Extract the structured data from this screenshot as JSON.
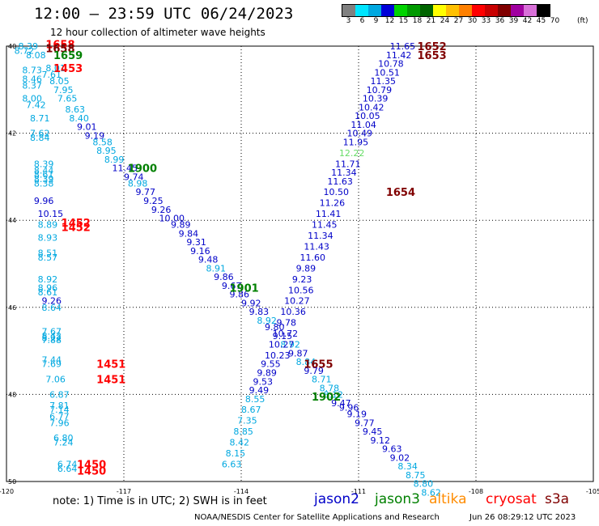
{
  "header": {
    "title": "12:00 – 23:59 UTC 06/24/2023",
    "subtitle": "12 hour collection of altimeter wave heights"
  },
  "legend": {
    "unit": "(ft)",
    "bins": [
      {
        "label": "3",
        "color": "#808080"
      },
      {
        "label": "6",
        "color": "#00e5ff"
      },
      {
        "label": "9",
        "color": "#00a8e0"
      },
      {
        "label": "12",
        "color": "#0000d8"
      },
      {
        "label": "15",
        "color": "#00d400"
      },
      {
        "label": "18",
        "color": "#009a00"
      },
      {
        "label": "21",
        "color": "#006400"
      },
      {
        "label": "24",
        "color": "#ffff00"
      },
      {
        "label": "27",
        "color": "#ffc000"
      },
      {
        "label": "30",
        "color": "#ff8000"
      },
      {
        "label": "33",
        "color": "#ff0000"
      },
      {
        "label": "36",
        "color": "#c80000"
      },
      {
        "label": "39",
        "color": "#800000"
      },
      {
        "label": "42",
        "color": "#a000a0"
      },
      {
        "label": "45",
        "color": "#d870d8"
      },
      {
        "label": "70",
        "color": "#000000"
      }
    ]
  },
  "map": {
    "lon_ticks": [
      "-120",
      "-117",
      "-114",
      "-111",
      "-108",
      "-105"
    ],
    "lat_ticks": [
      "40",
      "42",
      "44",
      "46",
      "48",
      "50"
    ],
    "lon_range": [
      -120,
      -105
    ],
    "lat_range": [
      40,
      50
    ],
    "lat_axis": "down",
    "grid": true
  },
  "colors": {
    "jason2": "#0000c8",
    "jason3": "#008000",
    "altika": "#ff8c00",
    "cryosat": "#ff0000",
    "s3a": "#800000",
    "cyan": "#00a8e0",
    "green": "#008000",
    "lightgreen": "#66dd66",
    "time": "#800000",
    "red": "#ff0000"
  },
  "tracks": [
    {
      "color": "cyan",
      "points": [
        {
          "lon": -119.7,
          "lat": 40.0,
          "v": "8.39"
        },
        {
          "lon": -119.8,
          "lat": 40.1,
          "v": "8.72"
        },
        {
          "lon": -119.5,
          "lat": 40.2,
          "v": "8.08"
        },
        {
          "lon": -119.6,
          "lat": 40.55,
          "v": "8.73"
        },
        {
          "lon": -119.6,
          "lat": 40.75,
          "v": "8.46"
        },
        {
          "lon": -119.6,
          "lat": 40.9,
          "v": "8.37"
        },
        {
          "lon": -119.6,
          "lat": 41.2,
          "v": "8.00"
        },
        {
          "lon": -119.5,
          "lat": 41.35,
          "v": "7.42"
        },
        {
          "lon": -119.4,
          "lat": 41.65,
          "v": "8.71"
        },
        {
          "lon": -119.4,
          "lat": 42.0,
          "v": "7.62"
        },
        {
          "lon": -119.4,
          "lat": 42.1,
          "v": "8.84"
        },
        {
          "lon": -119.3,
          "lat": 42.7,
          "v": "8.39"
        },
        {
          "lon": -119.3,
          "lat": 42.85,
          "v": "8.44"
        },
        {
          "lon": -119.3,
          "lat": 42.95,
          "v": "8.61"
        },
        {
          "lon": -119.3,
          "lat": 43.05,
          "v": "8.39"
        },
        {
          "lon": -119.3,
          "lat": 43.15,
          "v": "8.38"
        },
        {
          "lon": -119.2,
          "lat": 44.1,
          "v": "8.89"
        },
        {
          "lon": -119.2,
          "lat": 44.4,
          "v": "8.93"
        },
        {
          "lon": -119.2,
          "lat": 44.75,
          "v": "8.51"
        },
        {
          "lon": -119.2,
          "lat": 44.85,
          "v": "8.57"
        },
        {
          "lon": -119.2,
          "lat": 45.35,
          "v": "8.92"
        },
        {
          "lon": -119.2,
          "lat": 45.55,
          "v": "8.96"
        },
        {
          "lon": -119.2,
          "lat": 45.65,
          "v": "8.61"
        },
        {
          "lon": -119.1,
          "lat": 46.0,
          "v": "8.64"
        },
        {
          "lon": -119.1,
          "lat": 46.55,
          "v": "7.67"
        },
        {
          "lon": -119.1,
          "lat": 46.65,
          "v": "8.42"
        },
        {
          "lon": -119.1,
          "lat": 46.7,
          "v": "8.22"
        },
        {
          "lon": -119.1,
          "lat": 46.75,
          "v": "7.88"
        },
        {
          "lon": -119.1,
          "lat": 47.2,
          "v": "7.44"
        },
        {
          "lon": -119.1,
          "lat": 47.3,
          "v": "7.69"
        },
        {
          "lon": -119.0,
          "lat": 47.65,
          "v": "7.06"
        },
        {
          "lon": -118.9,
          "lat": 48.0,
          "v": "6.87"
        },
        {
          "lon": -118.9,
          "lat": 48.25,
          "v": "7.81"
        },
        {
          "lon": -118.9,
          "lat": 48.35,
          "v": "7.14"
        },
        {
          "lon": -118.9,
          "lat": 48.5,
          "v": "6.77"
        },
        {
          "lon": -118.9,
          "lat": 48.65,
          "v": "7.96"
        },
        {
          "lon": -118.8,
          "lat": 49.0,
          "v": "6.80"
        },
        {
          "lon": -118.8,
          "lat": 49.1,
          "v": "7.24"
        },
        {
          "lon": -118.7,
          "lat": 49.6,
          "v": "6.74"
        },
        {
          "lon": -118.7,
          "lat": 49.7,
          "v": "6.64"
        }
      ]
    },
    {
      "color": "cyan",
      "points": [
        {
          "lon": -119.0,
          "lat": 40.5,
          "v": "8.01"
        },
        {
          "lon": -119.1,
          "lat": 40.65,
          "v": "7.61"
        },
        {
          "lon": -118.9,
          "lat": 40.8,
          "v": "8.05"
        },
        {
          "lon": -118.8,
          "lat": 41.0,
          "v": "7.95"
        },
        {
          "lon": -118.7,
          "lat": 41.2,
          "v": "7.65"
        },
        {
          "lon": -118.5,
          "lat": 41.45,
          "v": "8.63"
        },
        {
          "lon": -118.4,
          "lat": 41.65,
          "v": "8.40"
        }
      ]
    },
    {
      "color": "jason2",
      "points": [
        {
          "lon": -118.2,
          "lat": 41.85,
          "v": "9.01"
        },
        {
          "lon": -118.0,
          "lat": 42.05,
          "v": "9.19"
        }
      ]
    },
    {
      "color": "cyan",
      "points": [
        {
          "lon": -117.8,
          "lat": 42.2,
          "v": "8.58"
        },
        {
          "lon": -117.7,
          "lat": 42.4,
          "v": "8.95"
        },
        {
          "lon": -117.5,
          "lat": 42.6,
          "v": "8.99"
        }
      ]
    },
    {
      "color": "jason2",
      "points": [
        {
          "lon": -117.3,
          "lat": 42.8,
          "v": "11.45"
        },
        {
          "lon": -117.0,
          "lat": 43.0,
          "v": "9.74"
        }
      ]
    },
    {
      "color": "cyan",
      "points": [
        {
          "lon": -116.9,
          "lat": 43.15,
          "v": "8.98"
        }
      ]
    },
    {
      "color": "jason2",
      "points": [
        {
          "lon": -116.7,
          "lat": 43.35,
          "v": "9.77"
        },
        {
          "lon": -116.5,
          "lat": 43.55,
          "v": "9.25"
        },
        {
          "lon": -116.3,
          "lat": 43.75,
          "v": "9.26"
        },
        {
          "lon": -116.1,
          "lat": 43.95,
          "v": "10.00"
        },
        {
          "lon": -115.8,
          "lat": 44.1,
          "v": "9.89"
        },
        {
          "lon": -115.6,
          "lat": 44.3,
          "v": "9.84"
        },
        {
          "lon": -115.4,
          "lat": 44.5,
          "v": "9.31"
        },
        {
          "lon": -115.3,
          "lat": 44.7,
          "v": "9.16"
        },
        {
          "lon": -115.1,
          "lat": 44.9,
          "v": "9.48"
        }
      ]
    },
    {
      "color": "cyan",
      "points": [
        {
          "lon": -114.9,
          "lat": 45.1,
          "v": "8.91"
        }
      ]
    },
    {
      "color": "jason2",
      "points": [
        {
          "lon": -114.7,
          "lat": 45.3,
          "v": "9.86"
        },
        {
          "lon": -114.5,
          "lat": 45.5,
          "v": "9.67"
        },
        {
          "lon": -114.3,
          "lat": 45.7,
          "v": "9.86"
        },
        {
          "lon": -114.0,
          "lat": 45.9,
          "v": "9.92"
        },
        {
          "lon": -113.8,
          "lat": 46.1,
          "v": "9.83"
        }
      ]
    },
    {
      "color": "cyan",
      "points": [
        {
          "lon": -113.6,
          "lat": 46.3,
          "v": "8.92"
        }
      ]
    },
    {
      "color": "jason2",
      "points": [
        {
          "lon": -113.4,
          "lat": 46.45,
          "v": "9.80"
        },
        {
          "lon": -113.2,
          "lat": 46.65,
          "v": "9.15"
        }
      ]
    },
    {
      "color": "cyan",
      "points": [
        {
          "lon": -113.0,
          "lat": 46.85,
          "v": "8.92"
        }
      ]
    },
    {
      "color": "jason2",
      "points": [
        {
          "lon": -112.8,
          "lat": 47.05,
          "v": "9.87"
        }
      ]
    },
    {
      "color": "cyan",
      "points": [
        {
          "lon": -112.6,
          "lat": 47.25,
          "v": "8.84"
        }
      ]
    },
    {
      "color": "jason2",
      "points": [
        {
          "lon": -112.4,
          "lat": 47.45,
          "v": "9.79"
        }
      ]
    },
    {
      "color": "cyan",
      "points": [
        {
          "lon": -112.2,
          "lat": 47.65,
          "v": "8.71"
        },
        {
          "lon": -112.0,
          "lat": 47.85,
          "v": "8.78"
        },
        {
          "lon": -111.9,
          "lat": 48.0,
          "v": "8.12"
        }
      ]
    },
    {
      "color": "jason2",
      "points": [
        {
          "lon": -111.7,
          "lat": 48.2,
          "v": "9.47"
        },
        {
          "lon": -111.5,
          "lat": 48.3,
          "v": "9.96"
        },
        {
          "lon": -111.3,
          "lat": 48.45,
          "v": "9.19"
        },
        {
          "lon": -111.1,
          "lat": 48.65,
          "v": "9.77"
        },
        {
          "lon": -110.9,
          "lat": 48.85,
          "v": "9.45"
        },
        {
          "lon": -110.7,
          "lat": 49.05,
          "v": "9.12"
        },
        {
          "lon": -110.4,
          "lat": 49.25,
          "v": "9.63"
        },
        {
          "lon": -110.2,
          "lat": 49.45,
          "v": "9.02"
        }
      ]
    },
    {
      "color": "cyan",
      "points": [
        {
          "lon": -110.0,
          "lat": 49.65,
          "v": "8.34"
        },
        {
          "lon": -109.8,
          "lat": 49.85,
          "v": "8.75"
        },
        {
          "lon": -109.6,
          "lat": 50.05,
          "v": "8.80"
        },
        {
          "lon": -109.4,
          "lat": 50.25,
          "v": "8.62"
        }
      ]
    },
    {
      "color": "jason2",
      "points": [
        {
          "lon": -119.3,
          "lat": 43.55,
          "v": "9.96"
        },
        {
          "lon": -119.2,
          "lat": 43.85,
          "v": "10.15"
        },
        {
          "lon": -119.1,
          "lat": 45.85,
          "v": "9.26"
        }
      ]
    },
    {
      "color": "jason2",
      "points": [
        {
          "lon": -110.2,
          "lat": 40.0,
          "v": "11.65"
        },
        {
          "lon": -110.3,
          "lat": 40.2,
          "v": "11.42"
        },
        {
          "lon": -110.5,
          "lat": 40.4,
          "v": "10.78"
        },
        {
          "lon": -110.6,
          "lat": 40.6,
          "v": "10.51"
        },
        {
          "lon": -110.7,
          "lat": 40.8,
          "v": "11.35"
        },
        {
          "lon": -110.8,
          "lat": 41.0,
          "v": "10.79"
        },
        {
          "lon": -110.9,
          "lat": 41.2,
          "v": "10.39"
        },
        {
          "lon": -111.0,
          "lat": 41.4,
          "v": "10.42"
        },
        {
          "lon": -111.1,
          "lat": 41.6,
          "v": "10.05"
        },
        {
          "lon": -111.2,
          "lat": 41.8,
          "v": "11.04"
        },
        {
          "lon": -111.3,
          "lat": 42.0,
          "v": "10.49"
        },
        {
          "lon": -111.4,
          "lat": 42.2,
          "v": "11.95"
        }
      ]
    },
    {
      "color": "lightgreen",
      "points": [
        {
          "lon": -111.5,
          "lat": 42.45,
          "v": "12.22"
        }
      ]
    },
    {
      "color": "jason2",
      "points": [
        {
          "lon": -111.6,
          "lat": 42.7,
          "v": "11.71"
        },
        {
          "lon": -111.7,
          "lat": 42.9,
          "v": "11.34"
        },
        {
          "lon": -111.8,
          "lat": 43.1,
          "v": "11.63"
        },
        {
          "lon": -111.9,
          "lat": 43.35,
          "v": "10.50"
        },
        {
          "lon": -112.0,
          "lat": 43.6,
          "v": "11.26"
        },
        {
          "lon": -112.1,
          "lat": 43.85,
          "v": "11.41"
        },
        {
          "lon": -112.2,
          "lat": 44.1,
          "v": "11.45"
        },
        {
          "lon": -112.3,
          "lat": 44.35,
          "v": "11.34"
        },
        {
          "lon": -112.4,
          "lat": 44.6,
          "v": "11.43"
        },
        {
          "lon": -112.5,
          "lat": 44.85,
          "v": "11.60"
        },
        {
          "lon": -112.6,
          "lat": 45.1,
          "v": "9.89"
        },
        {
          "lon": -112.7,
          "lat": 45.35,
          "v": "9.23"
        },
        {
          "lon": -112.8,
          "lat": 45.6,
          "v": "10.56"
        },
        {
          "lon": -112.9,
          "lat": 45.85,
          "v": "10.27"
        },
        {
          "lon": -113.0,
          "lat": 46.1,
          "v": "10.36"
        },
        {
          "lon": -113.1,
          "lat": 46.35,
          "v": "9.78"
        },
        {
          "lon": -113.2,
          "lat": 46.6,
          "v": "10.72"
        },
        {
          "lon": -113.3,
          "lat": 46.85,
          "v": "10.27"
        },
        {
          "lon": -113.4,
          "lat": 47.1,
          "v": "10.23"
        },
        {
          "lon": -113.5,
          "lat": 47.3,
          "v": "9.55"
        },
        {
          "lon": -113.6,
          "lat": 47.5,
          "v": "9.89"
        },
        {
          "lon": -113.7,
          "lat": 47.7,
          "v": "9.53"
        },
        {
          "lon": -113.8,
          "lat": 47.9,
          "v": "9.49"
        }
      ]
    },
    {
      "color": "cyan",
      "points": [
        {
          "lon": -113.9,
          "lat": 48.1,
          "v": "8.55"
        },
        {
          "lon": -114.0,
          "lat": 48.35,
          "v": "8.67"
        },
        {
          "lon": -114.1,
          "lat": 48.6,
          "v": "7.35"
        },
        {
          "lon": -114.2,
          "lat": 48.85,
          "v": "8.85"
        },
        {
          "lon": -114.3,
          "lat": 49.1,
          "v": "8.42"
        },
        {
          "lon": -114.4,
          "lat": 49.35,
          "v": "8.15"
        },
        {
          "lon": -114.5,
          "lat": 49.6,
          "v": "6.63"
        }
      ]
    }
  ],
  "time_labels": [
    {
      "lon": -119.0,
      "lat": 39.95,
      "v": "1658",
      "color": "red"
    },
    {
      "lon": -119.0,
      "lat": 40.05,
      "v": "1658",
      "color": "time"
    },
    {
      "lon": -118.8,
      "lat": 40.2,
      "v": "1659",
      "color": "green"
    },
    {
      "lon": -118.8,
      "lat": 40.5,
      "v": "1453",
      "color": "red"
    },
    {
      "lon": -116.9,
      "lat": 42.8,
      "v": "1900",
      "color": "green"
    },
    {
      "lon": -118.6,
      "lat": 44.05,
      "v": "1452",
      "color": "red"
    },
    {
      "lon": -118.6,
      "lat": 44.15,
      "v": "1452",
      "color": "red"
    },
    {
      "lon": -114.3,
      "lat": 45.55,
      "v": "1901",
      "color": "green"
    },
    {
      "lon": -117.7,
      "lat": 47.3,
      "v": "1451",
      "color": "red"
    },
    {
      "lon": -117.7,
      "lat": 47.65,
      "v": "1451",
      "color": "red"
    },
    {
      "lon": -112.2,
      "lat": 48.05,
      "v": "1902",
      "color": "green"
    },
    {
      "lon": -112.4,
      "lat": 47.3,
      "v": "1655",
      "color": "time"
    },
    {
      "lon": -110.3,
      "lat": 43.35,
      "v": "1654",
      "color": "time"
    },
    {
      "lon": -109.5,
      "lat": 40.0,
      "v": "1652",
      "color": "time"
    },
    {
      "lon": -109.5,
      "lat": 40.2,
      "v": "1653",
      "color": "time"
    },
    {
      "lon": -118.2,
      "lat": 49.6,
      "v": "1450",
      "color": "red"
    },
    {
      "lon": -118.2,
      "lat": 49.75,
      "v": "1450",
      "color": "red"
    }
  ],
  "footer": {
    "note": "note:  1) Time is in UTC;  2) SWH is in feet",
    "satellites": [
      {
        "name": "jason2",
        "color": "jason2"
      },
      {
        "name": "jason3",
        "color": "jason3"
      },
      {
        "name": "altika",
        "color": "altika"
      },
      {
        "name": "cryosat",
        "color": "cryosat"
      },
      {
        "name": "s3a",
        "color": "s3a"
      }
    ],
    "credit": "NOAA/NESDIS Center for Satellite Applications and Research",
    "timestamp": "Jun 26 08:29:12 UTC 2023"
  }
}
